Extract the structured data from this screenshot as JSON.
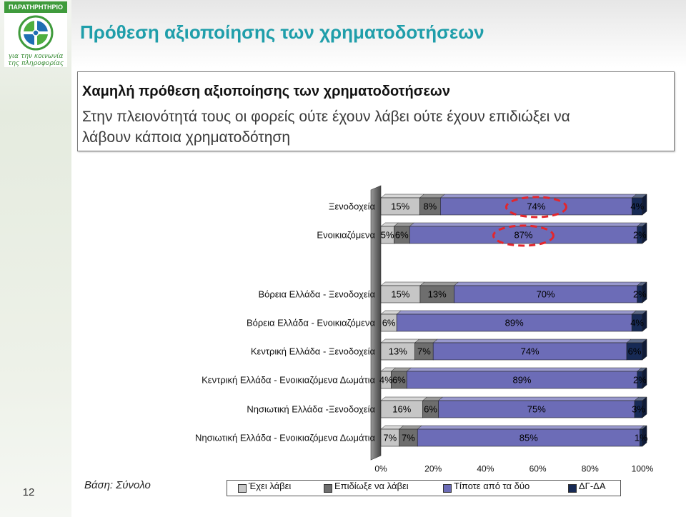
{
  "logo": {
    "banner": "ΠΑΡΑΤΗΡΗΤΗΡΙΟ",
    "tagline_line1": "για την κοινωνία",
    "tagline_line2": "της πληροφορίας",
    "icon": "observatory-globe-logo"
  },
  "slide": {
    "title": "Πρόθεση αξιοποίησης των χρηματοδοτήσεων",
    "title_color": "#1f9eaa",
    "base_note": "Βάση: Σύνολο",
    "page_number": "12"
  },
  "textbox": {
    "heading": "Χαμηλή πρόθεση αξιοποίησης των χρηματοδοτήσεων",
    "body_line1": "Στην πλειονότητά τους οι φορείς ούτε έχουν λάβει ούτε έχουν επιδιώξει να",
    "body_line2": "λάβουν κάποια χρηματοδότηση"
  },
  "chart_data": {
    "type": "bar",
    "orientation": "horizontal",
    "stacking": "percent",
    "categories": [
      "Ξενοδοχεία",
      "Ενοικιαζόμενα",
      "Βόρεια Ελλάδα - Ξενοδοχεία",
      "Βόρεια Ελλάδα - Ενοικιαζόμενα",
      "Κεντρική Ελλάδα - Ξενοδοχεία",
      "Κεντρική Ελλάδα - Ενοικιαζόμενα Δωμάτια",
      "Νησιωτική Ελλάδα -Ξενοδοχεία",
      "Νησιωτική Ελλάδα - Ενοικιαζόμενα Δωμάτια"
    ],
    "series": [
      {
        "name": "Έχει λάβει",
        "color": "#c6c6c6",
        "values": [
          15,
          5,
          15,
          6,
          13,
          4,
          16,
          7
        ]
      },
      {
        "name": "Επιδίωξε να λάβει",
        "color": "#6e6e6e",
        "values": [
          8,
          6,
          13,
          0,
          7,
          6,
          6,
          7
        ]
      },
      {
        "name": "Τίποτε από τα δύο",
        "color": "#6c6cb7",
        "values": [
          74,
          87,
          70,
          89,
          74,
          89,
          75,
          85
        ]
      },
      {
        "name": "ΔΓ-ΔΑ",
        "color": "#172a55",
        "values": [
          4,
          2,
          2,
          4,
          6,
          2,
          3,
          1
        ]
      }
    ],
    "xlim": [
      0,
      100
    ],
    "x_ticks": [
      "0%",
      "20%",
      "40%",
      "60%",
      "80%",
      "100%"
    ],
    "value_format": "percent",
    "legend_position": "bottom",
    "grid": false
  }
}
